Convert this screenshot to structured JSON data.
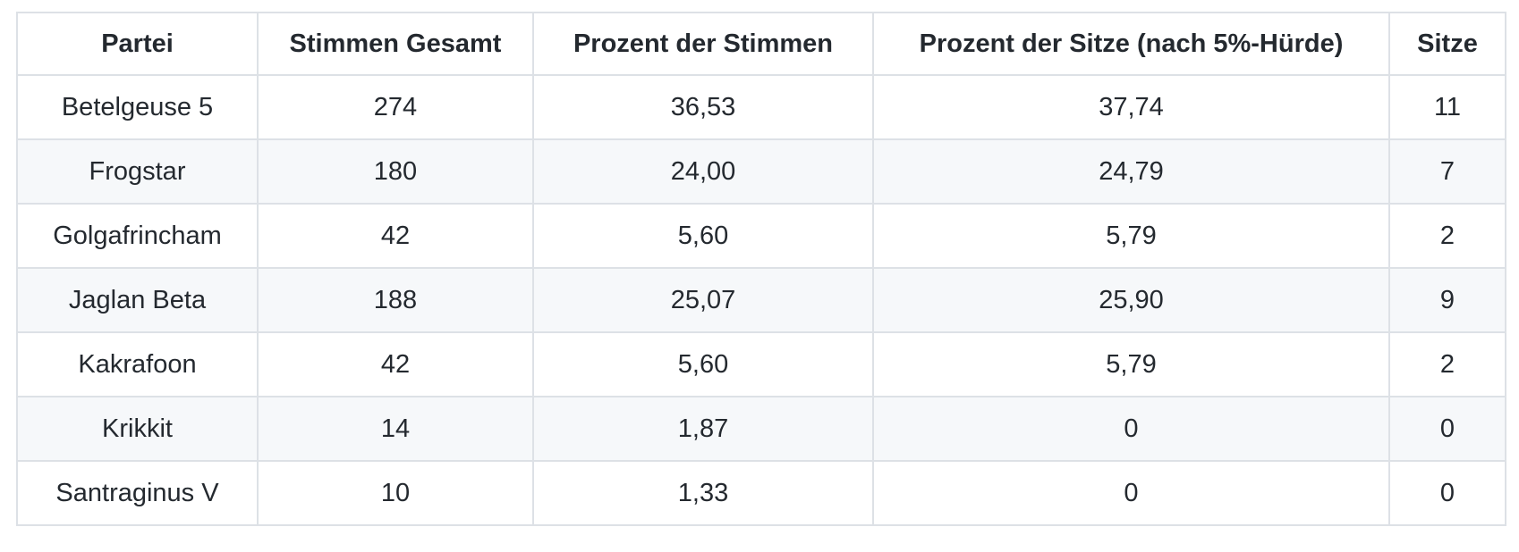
{
  "table": {
    "columns": [
      "Partei",
      "Stimmen Gesamt",
      "Prozent der Stimmen",
      "Prozent der Sitze (nach 5%-Hürde)",
      "Sitze"
    ],
    "rows": [
      [
        "Betelgeuse 5",
        "274",
        "36,53",
        "37,74",
        "11"
      ],
      [
        "Frogstar",
        "180",
        "24,00",
        "24,79",
        "7"
      ],
      [
        "Golgafrincham",
        "42",
        "5,60",
        "5,79",
        "2"
      ],
      [
        "Jaglan Beta",
        "188",
        "25,07",
        "25,90",
        "9"
      ],
      [
        "Kakrafoon",
        "42",
        "5,60",
        "5,79",
        "2"
      ],
      [
        "Krikkit",
        "14",
        "1,87",
        "0",
        "0"
      ],
      [
        "Santraginus V",
        "10",
        "1,33",
        "0",
        "0"
      ]
    ]
  },
  "chart_data": {
    "type": "table",
    "title": "",
    "columns": [
      "Partei",
      "Stimmen Gesamt",
      "Prozent der Stimmen",
      "Prozent der Sitze (nach 5%-Hürde)",
      "Sitze"
    ],
    "rows": [
      {
        "partei": "Betelgeuse 5",
        "stimmen_gesamt": 274,
        "prozent_der_stimmen": "36,53",
        "prozent_der_sitze": "37,74",
        "sitze": 11
      },
      {
        "partei": "Frogstar",
        "stimmen_gesamt": 180,
        "prozent_der_stimmen": "24,00",
        "prozent_der_sitze": "24,79",
        "sitze": 7
      },
      {
        "partei": "Golgafrincham",
        "stimmen_gesamt": 42,
        "prozent_der_stimmen": "5,60",
        "prozent_der_sitze": "5,79",
        "sitze": 2
      },
      {
        "partei": "Jaglan Beta",
        "stimmen_gesamt": 188,
        "prozent_der_stimmen": "25,07",
        "prozent_der_sitze": "25,90",
        "sitze": 9
      },
      {
        "partei": "Kakrafoon",
        "stimmen_gesamt": 42,
        "prozent_der_stimmen": "5,60",
        "prozent_der_sitze": "5,79",
        "sitze": 2
      },
      {
        "partei": "Krikkit",
        "stimmen_gesamt": 14,
        "prozent_der_stimmen": "1,87",
        "prozent_der_sitze": "0",
        "sitze": 0
      },
      {
        "partei": "Santraginus V",
        "stimmen_gesamt": 10,
        "prozent_der_stimmen": "1,33",
        "prozent_der_sitze": "0",
        "sitze": 0
      }
    ],
    "layout_hints": {
      "header_bold": true,
      "cell_alignment": "center",
      "zebra_striping": "even rows shaded"
    }
  },
  "colors": {
    "row_stripe": "#f6f8fa",
    "row_default": "#ffffff",
    "border": "#dde1e6",
    "text": "#24292f",
    "page_background": "#ffffff"
  }
}
